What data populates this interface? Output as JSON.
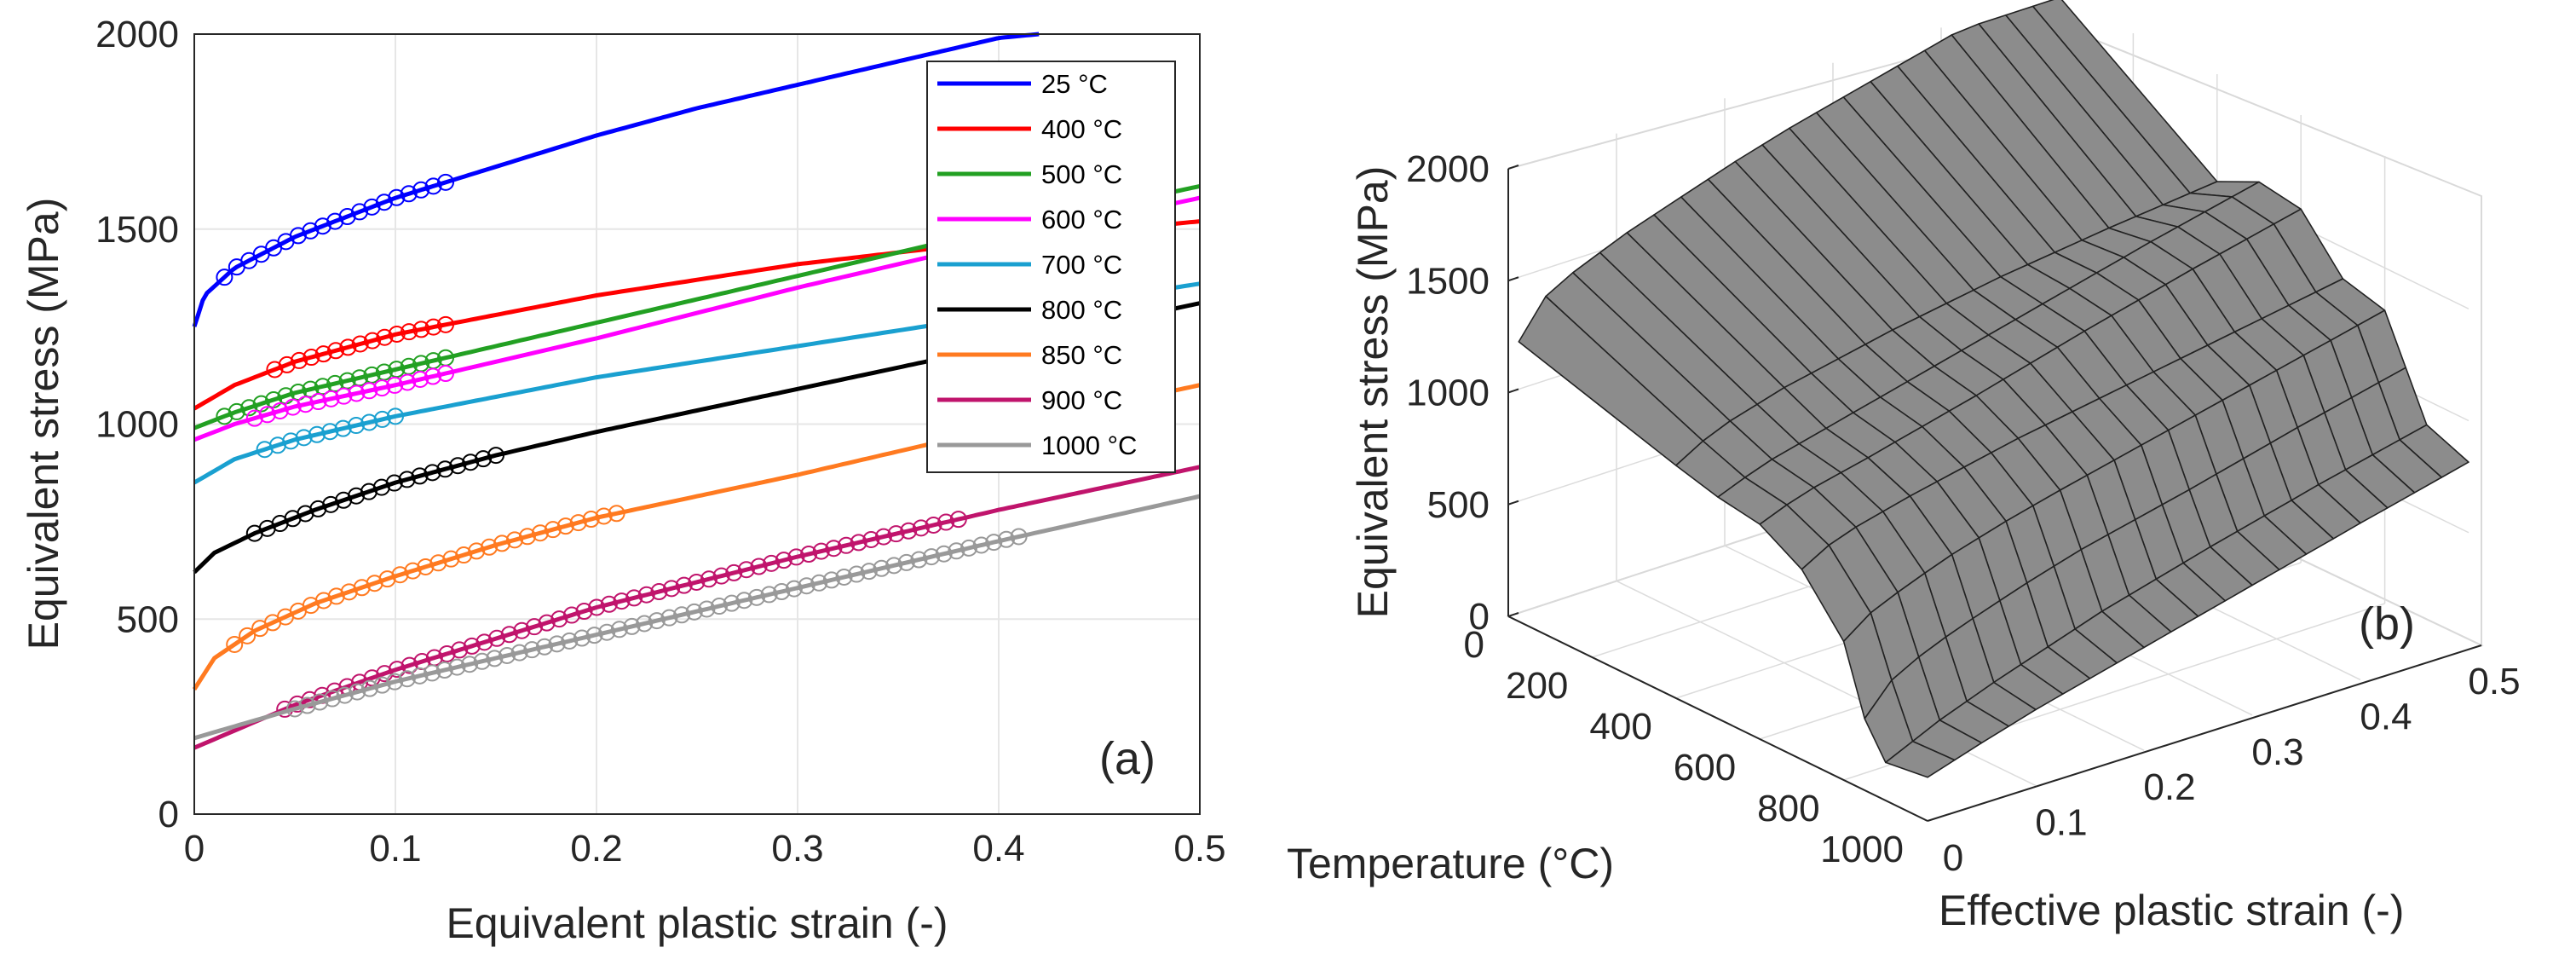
{
  "chart_data": [
    {
      "type": "line",
      "panel_label": "(a)",
      "xlabel": "Equivalent plastic strain (-)",
      "ylabel": "Equivalent stress (MPa)",
      "xlim": [
        0,
        0.5
      ],
      "ylim": [
        0,
        2000
      ],
      "xticks": [
        0,
        0.1,
        0.2,
        0.3,
        0.4,
        0.5
      ],
      "yticks": [
        0,
        500,
        1000,
        1500,
        2000
      ],
      "xtick_labels": [
        "0",
        "0.1",
        "0.2",
        "0.3",
        "0.4",
        "0.5"
      ],
      "ytick_labels": [
        "0",
        "500",
        "1000",
        "1500",
        "2000"
      ],
      "grid": true,
      "legend_position": "top-right",
      "series": [
        {
          "name": "25 °C",
          "color": "#0000ff",
          "fit_x": [
            0,
            0.005,
            0.02,
            0.05,
            0.1,
            0.15,
            0.2,
            0.25,
            0.3,
            0.35,
            0.4,
            0.42
          ],
          "fit_y": [
            1250,
            1330,
            1400,
            1480,
            1580,
            1660,
            1740,
            1810,
            1870,
            1930,
            1990,
            2000
          ],
          "exp_x": [
            0.015,
            0.125
          ],
          "exp_y": [
            1380,
            1640
          ]
        },
        {
          "name": "400 °C",
          "color": "#ff0000",
          "fit_x": [
            0,
            0.02,
            0.05,
            0.1,
            0.2,
            0.3,
            0.4,
            0.5
          ],
          "fit_y": [
            1040,
            1100,
            1160,
            1230,
            1330,
            1410,
            1470,
            1520
          ],
          "exp_x": [
            0.04,
            0.125
          ],
          "exp_y": [
            1150,
            1280
          ]
        },
        {
          "name": "500 °C",
          "color": "#22a022",
          "fit_x": [
            0,
            0.02,
            0.05,
            0.1,
            0.2,
            0.3,
            0.4,
            0.5
          ],
          "fit_y": [
            990,
            1030,
            1080,
            1140,
            1260,
            1380,
            1500,
            1610
          ],
          "exp_x": [
            0.015,
            0.125
          ],
          "exp_y": [
            1030,
            1180
          ]
        },
        {
          "name": "600 °C",
          "color": "#ff00ff",
          "fit_x": [
            0,
            0.02,
            0.05,
            0.1,
            0.2,
            0.3,
            0.4,
            0.5
          ],
          "fit_y": [
            960,
            1000,
            1045,
            1100,
            1220,
            1350,
            1470,
            1580
          ],
          "exp_x": [
            0.03,
            0.125
          ],
          "exp_y": [
            1010,
            1120
          ]
        },
        {
          "name": "700 °C",
          "color": "#1aa0d0",
          "fit_x": [
            0,
            0.02,
            0.05,
            0.1,
            0.2,
            0.3,
            0.4,
            0.5
          ],
          "fit_y": [
            850,
            910,
            960,
            1020,
            1120,
            1200,
            1280,
            1360
          ],
          "exp_x": [
            0.035,
            0.1
          ],
          "exp_y": [
            950,
            1030
          ]
        },
        {
          "name": "800 °C",
          "color": "#000000",
          "fit_x": [
            0,
            0.01,
            0.03,
            0.06,
            0.1,
            0.15,
            0.2,
            0.3,
            0.4,
            0.5
          ],
          "fit_y": [
            620,
            670,
            720,
            780,
            850,
            920,
            980,
            1090,
            1200,
            1310
          ],
          "exp_x": [
            0.03,
            0.15
          ],
          "exp_y": [
            720,
            940
          ]
        },
        {
          "name": "850 °C",
          "color": "#ff7a20",
          "fit_x": [
            0,
            0.01,
            0.03,
            0.06,
            0.1,
            0.15,
            0.2,
            0.3,
            0.4,
            0.5
          ],
          "fit_y": [
            320,
            400,
            470,
            540,
            610,
            690,
            760,
            870,
            990,
            1100
          ],
          "exp_x": [
            0.02,
            0.21
          ],
          "exp_y": [
            440,
            780
          ]
        },
        {
          "name": "900 °C",
          "color": "#c0146c",
          "fit_x": [
            0,
            0.05,
            0.1,
            0.2,
            0.3,
            0.4,
            0.5
          ],
          "fit_y": [
            170,
            280,
            370,
            530,
            660,
            780,
            890
          ],
          "exp_x": [
            0.045,
            0.38
          ],
          "exp_y": [
            280,
            780
          ]
        },
        {
          "name": "1000 °C",
          "color": "#999999",
          "fit_x": [
            0,
            0.05,
            0.1,
            0.2,
            0.3,
            0.4,
            0.5
          ],
          "fit_y": [
            195,
            270,
            340,
            460,
            580,
            700,
            815
          ],
          "exp_x": [
            0.05,
            0.41
          ],
          "exp_y": [
            270,
            720
          ]
        }
      ]
    },
    {
      "type": "surface",
      "panel_label": "(b)",
      "xlabel": "Temperature (°C)",
      "ylabel": "Effective plastic strain (-)",
      "zlabel": "Equivalent stress (MPa)",
      "xlim": [
        0,
        1000
      ],
      "ylim": [
        0,
        0.5
      ],
      "zlim": [
        0,
        2000
      ],
      "xtick_labels": [
        "0",
        "200",
        "400",
        "600",
        "800",
        "1000"
      ],
      "ytick_labels": [
        "0",
        "0.1",
        "0.2",
        "0.3",
        "0.4",
        "0.5"
      ],
      "ztick_labels": [
        "0",
        "500",
        "1000",
        "1500",
        "2000"
      ],
      "temperatures": [
        25,
        400,
        500,
        600,
        700,
        800,
        850,
        900,
        1000
      ],
      "face_color": "#8c8c8c"
    }
  ]
}
